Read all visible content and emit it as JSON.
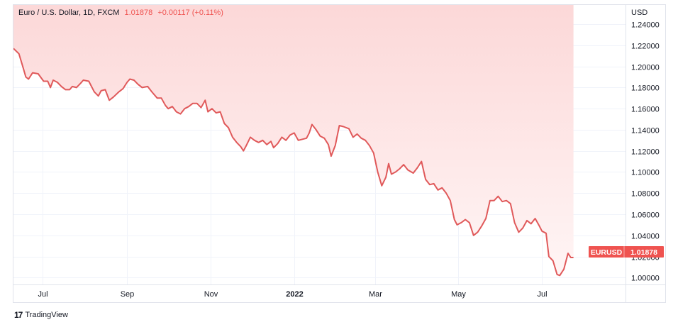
{
  "legend": {
    "symbol": "Euro / U.S. Dollar, 1D, FXCM",
    "last": "1.01878",
    "change": "+0.00117 (+0.11%)"
  },
  "currency_label": "USD",
  "price_tag": {
    "symbol": "EURUSD",
    "value": "1.01878"
  },
  "branding": {
    "logo_mark": "17",
    "text": "TradingView"
  },
  "colors": {
    "line": "#e0595a",
    "fill_top": "#fcd8d8",
    "fill_bottom": "#fff5f5",
    "tag": "#ef5350",
    "grid": "#f0f3fa"
  },
  "chart_data": {
    "type": "area",
    "title": "Euro / U.S. Dollar, 1D, FXCM",
    "y_ticks": [
      "1.24000",
      "1.22000",
      "1.20000",
      "1.18000",
      "1.16000",
      "1.14000",
      "1.12000",
      "1.10000",
      "1.08000",
      "1.06000",
      "1.04000",
      "1.02000",
      "1.00000"
    ],
    "ylim": [
      0.9935,
      1.2582
    ],
    "x_ticks": [
      {
        "label": "Jul",
        "date": "2021-07-01"
      },
      {
        "label": "Sep",
        "date": "2021-09-01"
      },
      {
        "label": "Nov",
        "date": "2021-11-01"
      },
      {
        "label": "2022",
        "date": "2022-01-01",
        "bold": true
      },
      {
        "label": "Mar",
        "date": "2022-03-01"
      },
      {
        "label": "May",
        "date": "2022-05-01"
      },
      {
        "label": "Jul",
        "date": "2022-07-01"
      }
    ],
    "xlim": [
      "2021-06-10",
      "2022-08-31"
    ],
    "grid": true,
    "series": [
      {
        "points": [
          [
            "2021-06-10",
            1.217
          ],
          [
            "2021-06-14",
            1.212
          ],
          [
            "2021-06-17",
            1.199
          ],
          [
            "2021-06-19",
            1.19
          ],
          [
            "2021-06-21",
            1.188
          ],
          [
            "2021-06-24",
            1.194
          ],
          [
            "2021-06-28",
            1.193
          ],
          [
            "2021-07-02",
            1.186
          ],
          [
            "2021-07-05",
            1.186
          ],
          [
            "2021-07-07",
            1.18
          ],
          [
            "2021-07-09",
            1.187
          ],
          [
            "2021-07-12",
            1.185
          ],
          [
            "2021-07-15",
            1.181
          ],
          [
            "2021-07-18",
            1.178
          ],
          [
            "2021-07-21",
            1.178
          ],
          [
            "2021-07-23",
            1.181
          ],
          [
            "2021-07-26",
            1.18
          ],
          [
            "2021-07-29",
            1.184
          ],
          [
            "2021-07-31",
            1.187
          ],
          [
            "2021-08-04",
            1.186
          ],
          [
            "2021-08-08",
            1.176
          ],
          [
            "2021-08-11",
            1.172
          ],
          [
            "2021-08-13",
            1.177
          ],
          [
            "2021-08-16",
            1.178
          ],
          [
            "2021-08-19",
            1.168
          ],
          [
            "2021-08-22",
            1.171
          ],
          [
            "2021-08-26",
            1.176
          ],
          [
            "2021-08-29",
            1.179
          ],
          [
            "2021-09-01",
            1.185
          ],
          [
            "2021-09-03",
            1.188
          ],
          [
            "2021-09-06",
            1.187
          ],
          [
            "2021-09-09",
            1.183
          ],
          [
            "2021-09-12",
            1.18
          ],
          [
            "2021-09-16",
            1.181
          ],
          [
            "2021-09-19",
            1.176
          ],
          [
            "2021-09-23",
            1.17
          ],
          [
            "2021-09-26",
            1.17
          ],
          [
            "2021-09-29",
            1.163
          ],
          [
            "2021-10-01",
            1.16
          ],
          [
            "2021-10-04",
            1.162
          ],
          [
            "2021-10-07",
            1.157
          ],
          [
            "2021-10-10",
            1.155
          ],
          [
            "2021-10-13",
            1.16
          ],
          [
            "2021-10-16",
            1.162
          ],
          [
            "2021-10-19",
            1.165
          ],
          [
            "2021-10-22",
            1.165
          ],
          [
            "2021-10-25",
            1.161
          ],
          [
            "2021-10-28",
            1.168
          ],
          [
            "2021-10-30",
            1.157
          ],
          [
            "2021-11-02",
            1.16
          ],
          [
            "2021-11-05",
            1.156
          ],
          [
            "2021-11-08",
            1.157
          ],
          [
            "2021-11-11",
            1.146
          ],
          [
            "2021-11-14",
            1.142
          ],
          [
            "2021-11-17",
            1.133
          ],
          [
            "2021-11-20",
            1.128
          ],
          [
            "2021-11-23",
            1.124
          ],
          [
            "2021-11-25",
            1.12
          ],
          [
            "2021-11-27",
            1.125
          ],
          [
            "2021-11-30",
            1.133
          ],
          [
            "2021-12-03",
            1.13
          ],
          [
            "2021-12-06",
            1.128
          ],
          [
            "2021-12-09",
            1.13
          ],
          [
            "2021-12-12",
            1.126
          ],
          [
            "2021-12-15",
            1.129
          ],
          [
            "2021-12-17",
            1.123
          ],
          [
            "2021-12-20",
            1.127
          ],
          [
            "2021-12-23",
            1.133
          ],
          [
            "2021-12-26",
            1.13
          ],
          [
            "2021-12-29",
            1.135
          ],
          [
            "2022-01-01",
            1.137
          ],
          [
            "2022-01-04",
            1.13
          ],
          [
            "2022-01-07",
            1.131
          ],
          [
            "2022-01-10",
            1.132
          ],
          [
            "2022-01-12",
            1.137
          ],
          [
            "2022-01-14",
            1.145
          ],
          [
            "2022-01-17",
            1.14
          ],
          [
            "2022-01-20",
            1.134
          ],
          [
            "2022-01-23",
            1.132
          ],
          [
            "2022-01-26",
            1.126
          ],
          [
            "2022-01-28",
            1.115
          ],
          [
            "2022-01-31",
            1.125
          ],
          [
            "2022-02-03",
            1.144
          ],
          [
            "2022-02-06",
            1.143
          ],
          [
            "2022-02-10",
            1.141
          ],
          [
            "2022-02-13",
            1.133
          ],
          [
            "2022-02-16",
            1.136
          ],
          [
            "2022-02-19",
            1.132
          ],
          [
            "2022-02-22",
            1.13
          ],
          [
            "2022-02-25",
            1.125
          ],
          [
            "2022-02-28",
            1.118
          ],
          [
            "2022-03-03",
            1.1
          ],
          [
            "2022-03-06",
            1.087
          ],
          [
            "2022-03-09",
            1.095
          ],
          [
            "2022-03-11",
            1.108
          ],
          [
            "2022-03-13",
            1.098
          ],
          [
            "2022-03-16",
            1.1
          ],
          [
            "2022-03-19",
            1.103
          ],
          [
            "2022-03-22",
            1.107
          ],
          [
            "2022-03-25",
            1.102
          ],
          [
            "2022-03-29",
            1.099
          ],
          [
            "2022-04-01",
            1.104
          ],
          [
            "2022-04-04",
            1.11
          ],
          [
            "2022-04-07",
            1.093
          ],
          [
            "2022-04-10",
            1.088
          ],
          [
            "2022-04-13",
            1.089
          ],
          [
            "2022-04-16",
            1.083
          ],
          [
            "2022-04-19",
            1.085
          ],
          [
            "2022-04-22",
            1.08
          ],
          [
            "2022-04-25",
            1.073
          ],
          [
            "2022-04-28",
            1.055
          ],
          [
            "2022-04-30",
            1.05
          ],
          [
            "2022-05-03",
            1.052
          ],
          [
            "2022-05-06",
            1.055
          ],
          [
            "2022-05-09",
            1.052
          ],
          [
            "2022-05-12",
            1.04
          ],
          [
            "2022-05-15",
            1.043
          ],
          [
            "2022-05-18",
            1.049
          ],
          [
            "2022-05-21",
            1.056
          ],
          [
            "2022-05-24",
            1.073
          ],
          [
            "2022-05-27",
            1.073
          ],
          [
            "2022-05-30",
            1.077
          ],
          [
            "2022-06-02",
            1.072
          ],
          [
            "2022-06-05",
            1.073
          ],
          [
            "2022-06-08",
            1.07
          ],
          [
            "2022-06-11",
            1.052
          ],
          [
            "2022-06-14",
            1.043
          ],
          [
            "2022-06-17",
            1.047
          ],
          [
            "2022-06-20",
            1.054
          ],
          [
            "2022-06-23",
            1.051
          ],
          [
            "2022-06-26",
            1.056
          ],
          [
            "2022-06-29",
            1.049
          ],
          [
            "2022-07-01",
            1.044
          ],
          [
            "2022-07-04",
            1.042
          ],
          [
            "2022-07-06",
            1.02
          ],
          [
            "2022-07-09",
            1.016
          ],
          [
            "2022-07-12",
            1.003
          ],
          [
            "2022-07-14",
            1.002
          ],
          [
            "2022-07-17",
            1.008
          ],
          [
            "2022-07-20",
            1.023
          ],
          [
            "2022-07-22",
            1.019
          ],
          [
            "2022-07-24",
            1.019
          ]
        ]
      }
    ]
  }
}
